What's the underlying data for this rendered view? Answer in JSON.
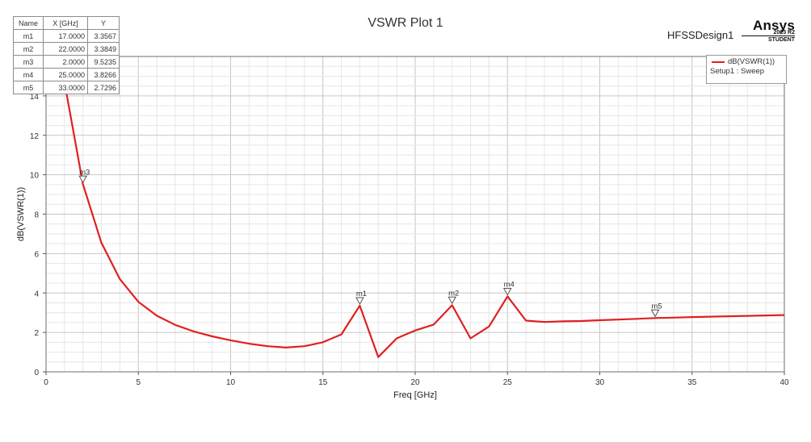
{
  "header": {
    "title": "VSWR Plot 1",
    "design_name": "HFSSDesign1",
    "brand": "Ansys",
    "brand_version": "2023 R2",
    "brand_edition": "STUDENT"
  },
  "legend": {
    "series_label": "dB(VSWR(1))",
    "setup_label": "Setup1 : Sweep"
  },
  "marker_table": {
    "headers": [
      "Name",
      "X [GHz]",
      "Y"
    ],
    "rows": [
      {
        "name": "m1",
        "x": "17.0000",
        "y": "3.3567"
      },
      {
        "name": "m2",
        "x": "22.0000",
        "y": "3.3849"
      },
      {
        "name": "m3",
        "x": "2.0000",
        "y": "9.5235"
      },
      {
        "name": "m4",
        "x": "25.0000",
        "y": "3.8266"
      },
      {
        "name": "m5",
        "x": "33.0000",
        "y": "2.7296"
      }
    ]
  },
  "chart_data": {
    "type": "line",
    "title": "VSWR Plot 1",
    "xlabel": "Freq [GHz]",
    "ylabel": "dB(VSWR(1))",
    "xlim": [
      0,
      40
    ],
    "ylim": [
      0,
      16
    ],
    "xticks": [
      0,
      5,
      10,
      15,
      20,
      25,
      30,
      35,
      40
    ],
    "yticks": [
      0,
      2,
      4,
      6,
      8,
      10,
      12,
      14
    ],
    "grid": true,
    "series": [
      {
        "name": "dB(VSWR(1))",
        "color": "#e02020",
        "x": [
          1,
          2,
          3,
          4,
          5,
          6,
          7,
          8,
          9,
          10,
          11,
          12,
          13,
          14,
          15,
          16,
          17,
          18,
          19,
          20,
          21,
          22,
          23,
          24,
          25,
          26,
          27,
          28,
          29,
          30,
          31,
          32,
          33,
          34,
          35,
          36,
          37,
          38,
          39,
          40
        ],
        "y": [
          14.7,
          9.52,
          6.55,
          4.7,
          3.55,
          2.85,
          2.38,
          2.05,
          1.8,
          1.6,
          1.43,
          1.3,
          1.23,
          1.3,
          1.5,
          1.9,
          3.36,
          0.75,
          1.7,
          2.1,
          2.4,
          3.38,
          1.7,
          2.3,
          3.83,
          2.6,
          2.53,
          2.56,
          2.58,
          2.62,
          2.65,
          2.69,
          2.73,
          2.75,
          2.78,
          2.8,
          2.82,
          2.84,
          2.86,
          2.88
        ]
      }
    ],
    "markers": [
      {
        "name": "m1",
        "x": 17,
        "y": 3.3567
      },
      {
        "name": "m2",
        "x": 22,
        "y": 3.3849
      },
      {
        "name": "m3",
        "x": 2,
        "y": 9.5235
      },
      {
        "name": "m4",
        "x": 25,
        "y": 3.8266
      },
      {
        "name": "m5",
        "x": 33,
        "y": 2.7296
      }
    ]
  }
}
